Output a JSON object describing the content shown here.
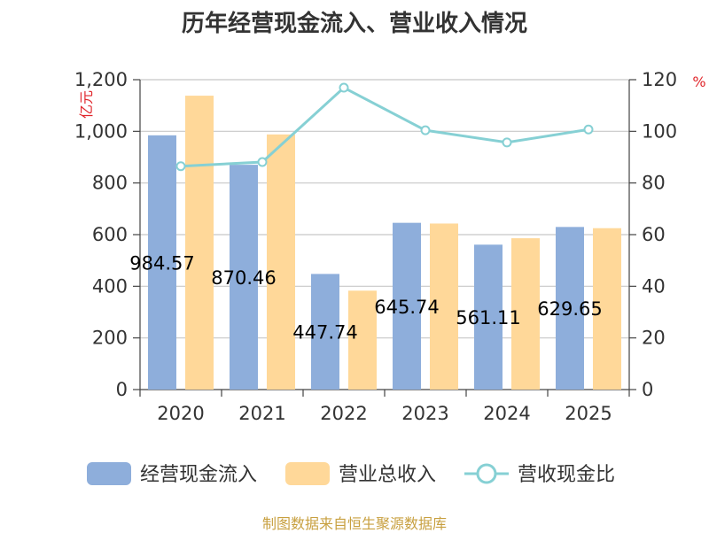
{
  "chart_data": {
    "type": "bar",
    "title": "历年经营现金流入、营业收入情况",
    "categories": [
      "2020",
      "2021",
      "2022",
      "2023",
      "2024",
      "2025"
    ],
    "series": [
      {
        "name": "经营现金流入",
        "kind": "bar",
        "axis": "left",
        "color": "#8eaedb",
        "values": [
          984.57,
          870.46,
          447.74,
          645.74,
          561.11,
          629.65
        ]
      },
      {
        "name": "营业总收入",
        "kind": "bar",
        "axis": "left",
        "color": "#ffd899",
        "values": [
          1138,
          988,
          383,
          643,
          586,
          625
        ]
      },
      {
        "name": "营收现金比",
        "kind": "line",
        "axis": "right",
        "color": "#86d0d4",
        "values": [
          86.5,
          88.1,
          116.9,
          100.4,
          95.7,
          100.7
        ]
      }
    ],
    "bar_labels": [
      "984.57",
      "870.46",
      "447.74",
      "645.74",
      "561.11",
      "629.65"
    ],
    "y_left": {
      "unit": "亿元",
      "ylim": [
        0,
        1200
      ],
      "ticks": [
        "0",
        "200",
        "400",
        "600",
        "800",
        "1,000",
        "1,200"
      ]
    },
    "y_right": {
      "unit": "%",
      "ylim": [
        0,
        120
      ],
      "ticks": [
        "0",
        "20",
        "40",
        "60",
        "80",
        "100",
        "120"
      ]
    },
    "grid": true,
    "legend_position": "bottom"
  },
  "source_text": "制图数据来自恒生聚源数据库"
}
